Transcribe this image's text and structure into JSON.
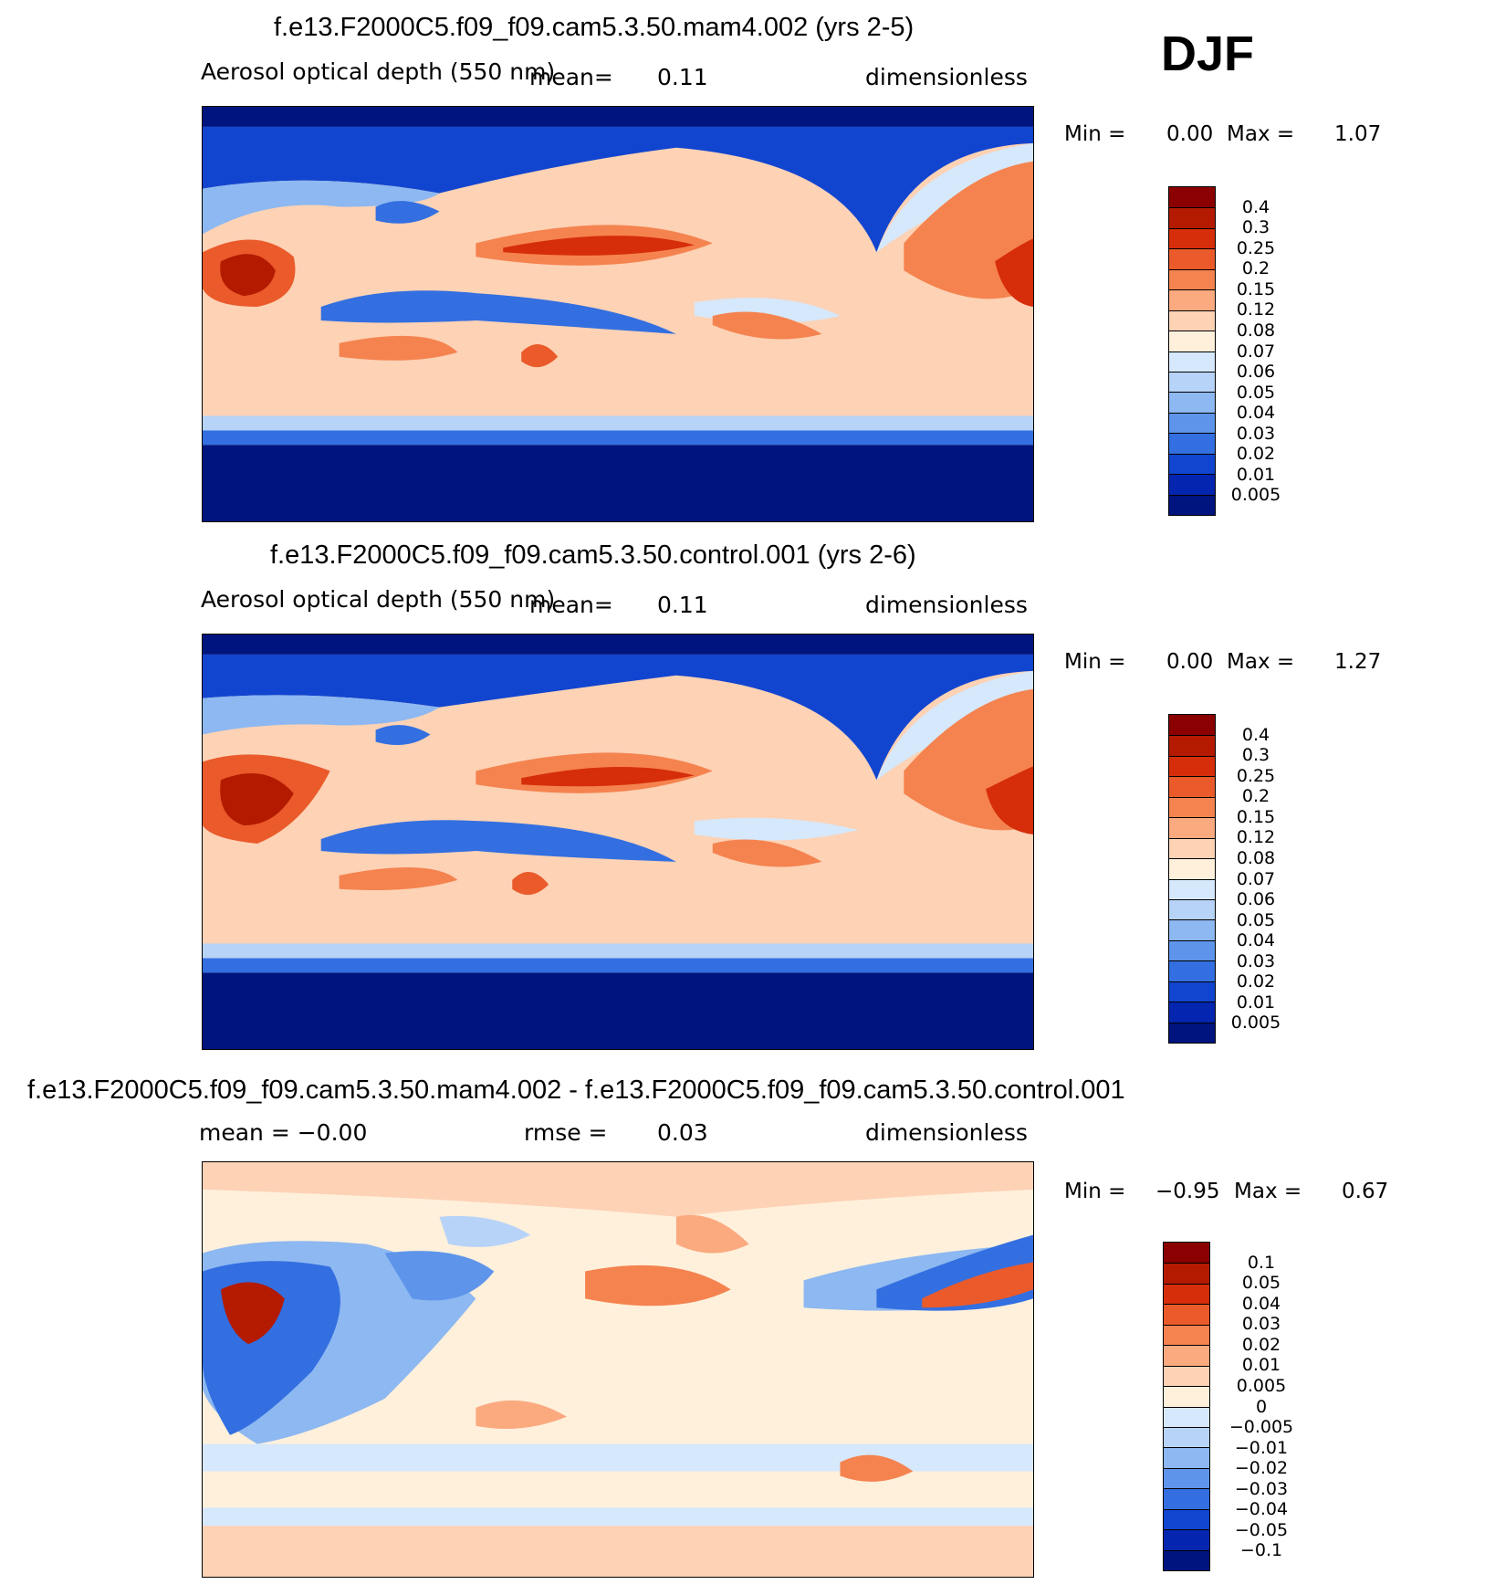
{
  "season": "DJF",
  "panels": [
    {
      "title": "f.e13.F2000C5.f09_f09.cam5.3.50.mam4.002 (yrs 2-5)",
      "left": "Aerosol optical depth (550 nm)",
      "mid_label": "mean=",
      "mid_value": "0.11",
      "right": "dimensionless",
      "min_label": "Min =",
      "min_value": "0.00",
      "max_label": "Max =",
      "max_value": "1.07",
      "levels": [
        "0.4",
        "0.3",
        "0.25",
        "0.2",
        "0.15",
        "0.12",
        "0.08",
        "0.07",
        "0.06",
        "0.05",
        "0.04",
        "0.03",
        "0.02",
        "0.01",
        "0.005"
      ],
      "colors": [
        "#8b0000",
        "#b31a00",
        "#d62e0a",
        "#ea5a2a",
        "#f5834f",
        "#fbaa80",
        "#fdd2b5",
        "#fff0dc",
        "#d6e8fb",
        "#b7d3f7",
        "#8db8f1",
        "#5e95ea",
        "#336fe0",
        "#1245cf",
        "#0425b0",
        "#00147f"
      ]
    },
    {
      "title": "f.e13.F2000C5.f09_f09.cam5.3.50.control.001 (yrs 2-6)",
      "left": "Aerosol optical depth (550 nm)",
      "mid_label": "mean=",
      "mid_value": "0.11",
      "right": "dimensionless",
      "min_label": "Min =",
      "min_value": "0.00",
      "max_label": "Max =",
      "max_value": "1.27",
      "levels": [
        "0.4",
        "0.3",
        "0.25",
        "0.2",
        "0.15",
        "0.12",
        "0.08",
        "0.07",
        "0.06",
        "0.05",
        "0.04",
        "0.03",
        "0.02",
        "0.01",
        "0.005"
      ],
      "colors": [
        "#8b0000",
        "#b31a00",
        "#d62e0a",
        "#ea5a2a",
        "#f5834f",
        "#fbaa80",
        "#fdd2b5",
        "#fff0dc",
        "#d6e8fb",
        "#b7d3f7",
        "#8db8f1",
        "#5e95ea",
        "#336fe0",
        "#1245cf",
        "#0425b0",
        "#00147f"
      ]
    },
    {
      "title": "f.e13.F2000C5.f09_f09.cam5.3.50.mam4.002 - f.e13.F2000C5.f09_f09.cam5.3.50.control.001",
      "left": "mean =   −0.00",
      "mid_label": "rmse =",
      "mid_value": "0.03",
      "right": "dimensionless",
      "min_label": "Min =",
      "min_value": "−0.95",
      "max_label": "Max =",
      "max_value": "0.67",
      "levels": [
        "0.1",
        "0.05",
        "0.04",
        "0.03",
        "0.02",
        "0.01",
        "0.005",
        "0",
        "−0.005",
        "−0.01",
        "−0.02",
        "−0.03",
        "−0.04",
        "−0.05",
        "−0.1"
      ],
      "colors": [
        "#8b0000",
        "#b31a00",
        "#d62e0a",
        "#ea5a2a",
        "#f5834f",
        "#fbaa80",
        "#fdd2b5",
        "#fff0dc",
        "#d6e8fb",
        "#b7d3f7",
        "#8db8f1",
        "#5e95ea",
        "#336fe0",
        "#1245cf",
        "#0425b0",
        "#00147f"
      ]
    }
  ],
  "chart_data": [
    {
      "type": "heatmap",
      "title": "f.e13.F2000C5.f09_f09.cam5.3.50.mam4.002 (yrs 2-5)",
      "variable": "Aerosol optical depth (550 nm)",
      "units": "dimensionless",
      "mean": 0.11,
      "min": 0.0,
      "max": 1.07,
      "contour_levels": [
        0.005,
        0.01,
        0.02,
        0.03,
        0.04,
        0.05,
        0.06,
        0.07,
        0.08,
        0.12,
        0.15,
        0.2,
        0.25,
        0.3,
        0.4
      ]
    },
    {
      "type": "heatmap",
      "title": "f.e13.F2000C5.f09_f09.cam5.3.50.control.001 (yrs 2-6)",
      "variable": "Aerosol optical depth (550 nm)",
      "units": "dimensionless",
      "mean": 0.11,
      "min": 0.0,
      "max": 1.27,
      "contour_levels": [
        0.005,
        0.01,
        0.02,
        0.03,
        0.04,
        0.05,
        0.06,
        0.07,
        0.08,
        0.12,
        0.15,
        0.2,
        0.25,
        0.3,
        0.4
      ]
    },
    {
      "type": "heatmap",
      "title": "f.e13.F2000C5.f09_f09.cam5.3.50.mam4.002 - f.e13.F2000C5.f09_f09.cam5.3.50.control.001",
      "units": "dimensionless",
      "mean": -0.0,
      "rmse": 0.03,
      "min": -0.95,
      "max": 0.67,
      "contour_levels": [
        -0.1,
        -0.05,
        -0.04,
        -0.03,
        -0.02,
        -0.01,
        -0.005,
        0,
        0.005,
        0.01,
        0.02,
        0.03,
        0.04,
        0.05,
        0.1
      ]
    }
  ]
}
